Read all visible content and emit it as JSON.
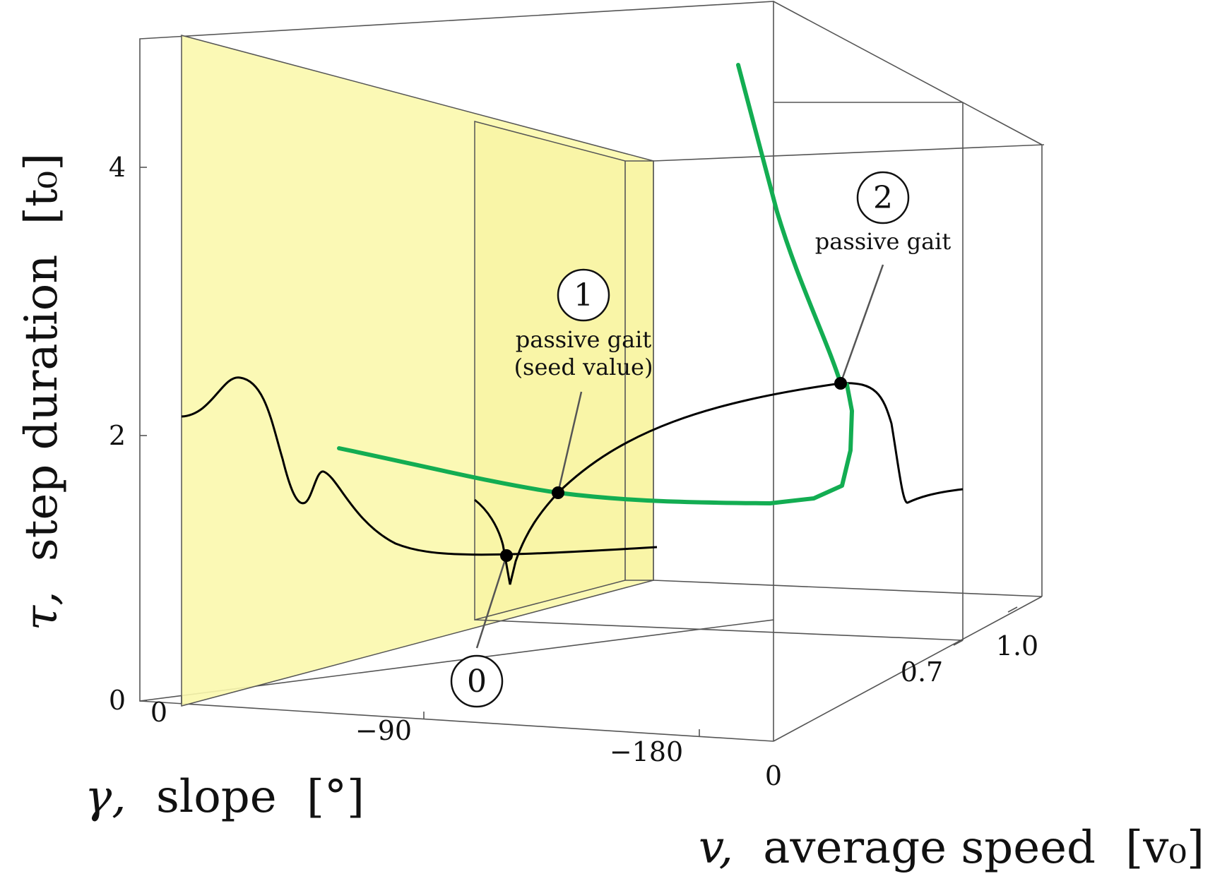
{
  "chart_data": {
    "type": "line",
    "projection": "3d",
    "axes": {
      "y_tau": {
        "label_symbol": "τ,",
        "label_text": "step duration",
        "label_unit": "[t₀]",
        "ticks": [
          "0",
          "2",
          "4"
        ]
      },
      "x_gamma": {
        "label_symbol": "γ,",
        "label_text": "slope",
        "label_unit": "[°]",
        "ticks": [
          "0",
          "−90",
          "−180"
        ]
      },
      "z_v": {
        "label_symbol": "v,",
        "label_text": "average speed",
        "label_unit": "[v₀]",
        "ticks": [
          "0",
          "0.7",
          "1.0"
        ]
      }
    },
    "highlight_planes": [
      {
        "color": "#fbf8ad",
        "plane": "gamma = 0"
      },
      {
        "color": "#fbf8ad",
        "plane": "v = 0.7"
      }
    ],
    "series": [
      {
        "color": "#000000",
        "kind": "solution-branch"
      },
      {
        "color": "#13ad52",
        "kind": "continuation-path"
      }
    ],
    "markers": [
      {
        "id": "0",
        "number": "0",
        "caption": []
      },
      {
        "id": "1",
        "number": "1",
        "caption": [
          "passive gait",
          "(seed value)"
        ]
      },
      {
        "id": "2",
        "number": "2",
        "caption": [
          "passive gait"
        ]
      }
    ]
  }
}
